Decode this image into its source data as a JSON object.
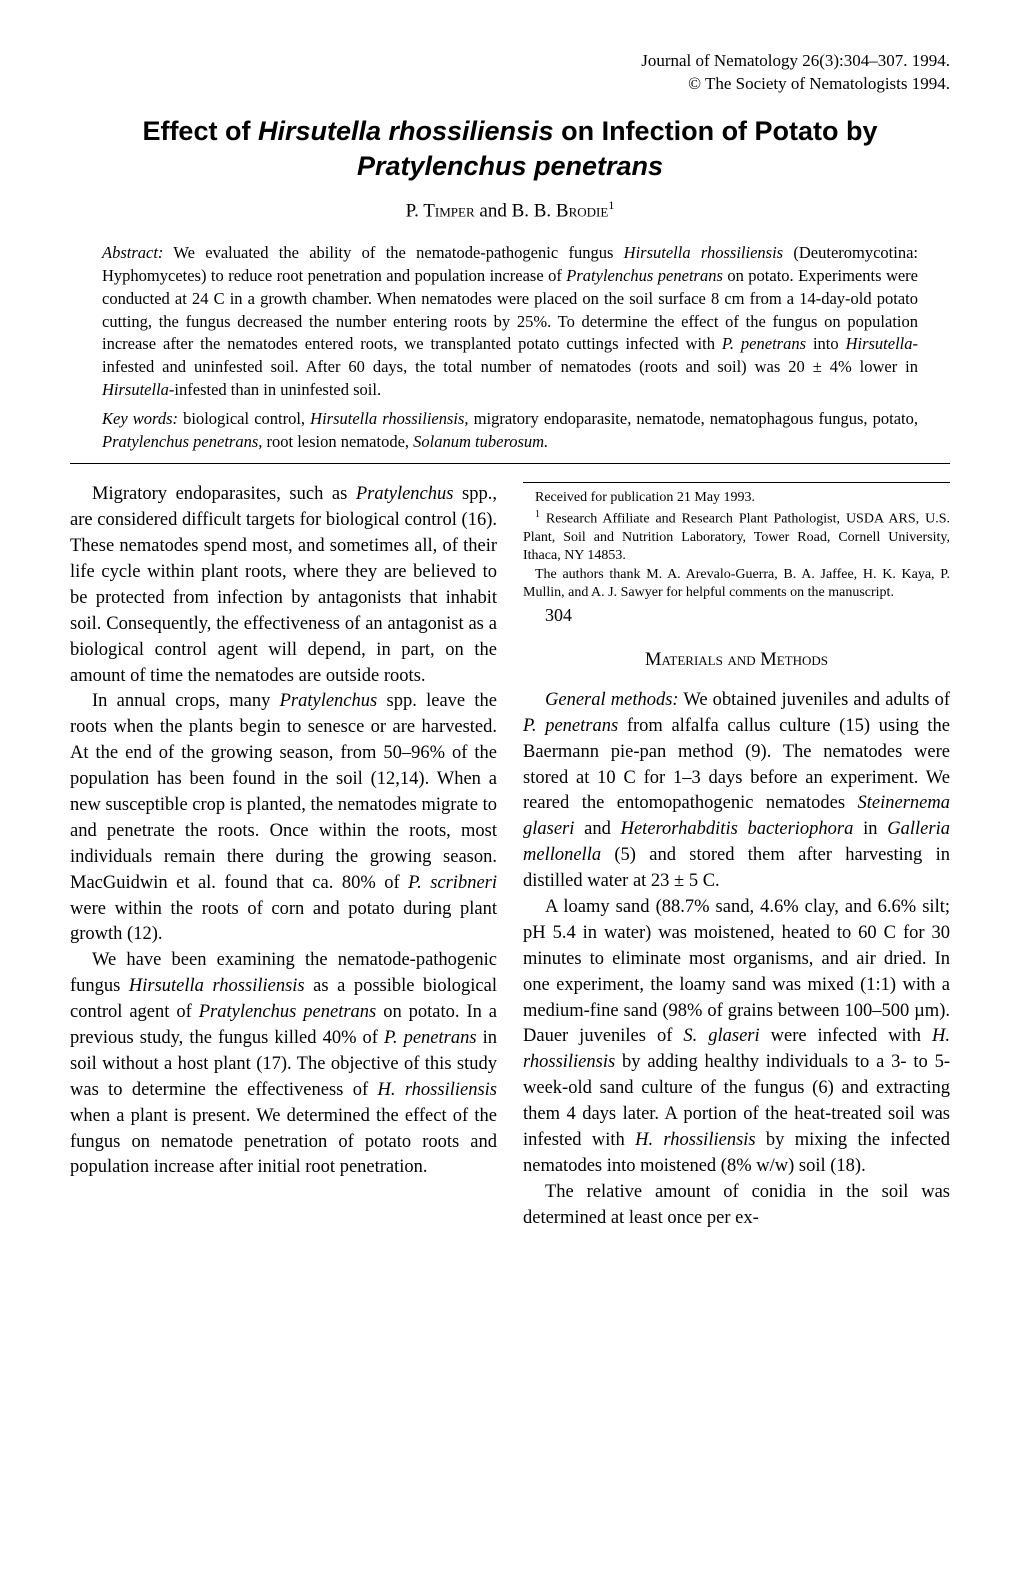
{
  "header": {
    "citation": "Journal of Nematology 26(3):304–307. 1994.",
    "copyright": "© The Society of Nematologists 1994."
  },
  "title": {
    "pre": "Effect of ",
    "sp1": "Hirsutella rhossiliensis",
    "mid": " on Infection of Potato by ",
    "sp2": "Pratylenchus penetrans"
  },
  "authors": {
    "a1": "P. Timper",
    "conj": " and ",
    "a2": "B. B. Brodie",
    "sup": "1"
  },
  "abstract": {
    "label": "Abstract:",
    "text_parts": {
      "p1": " We evaluated the ability of the nematode-pathogenic fungus ",
      "i1": "Hirsutella rhossiliensis",
      "p2": " (Deuteromycotina: Hyphomycetes) to reduce root penetration and population increase of ",
      "i2": "Pratylenchus penetrans",
      "p3": " on potato. Experiments were conducted at 24 C in a growth chamber. When nematodes were placed on the soil surface 8 cm from a 14-day-old potato cutting, the fungus decreased the number entering roots by 25%. To determine the effect of the fungus on population increase after the nematodes entered roots, we transplanted potato cuttings infected with ",
      "i3": "P. penetrans",
      "p4": " into ",
      "i4": "Hirsutella",
      "p5": "-infested and uninfested soil. After 60 days, the total number of nematodes (roots and soil) was 20 ± 4% lower in ",
      "i5": "Hirsutella",
      "p6": "-infested than in uninfested soil."
    }
  },
  "keywords": {
    "label": "Key words:",
    "parts": {
      "p1": " biological control, ",
      "i1": "Hirsutella rhossiliensis,",
      "p2": " migratory endoparasite, nematode, nematophagous fungus, potato, ",
      "i2": "Pratylenchus penetrans,",
      "p3": " root lesion nematode, ",
      "i3": "Solanum tuberosum."
    }
  },
  "body": {
    "para1": {
      "p1": "Migratory endoparasites, such as ",
      "i1": "Pratylenchus",
      "p2": " spp., are considered difficult targets for biological control (16). These nematodes spend most, and sometimes all, of their life cycle within plant roots, where they are believed to be protected from infection by antagonists that inhabit soil. Consequently, the effectiveness of an antagonist as a biological control agent will depend, in part, on the amount of time the nematodes are outside roots."
    },
    "para2": {
      "p1": "In annual crops, many ",
      "i1": "Pratylenchus",
      "p2": " spp. leave the roots when the plants begin to senesce or are harvested. At the end of the growing season, from 50–96% of the population has been found in the soil (12,14). When a new susceptible crop is planted, the nematodes migrate to and penetrate the roots. Once within the roots, most individuals remain there during the growing season. MacGuidwin et al. found that ca. 80% of ",
      "i2": "P. scribneri",
      "p3": " were within the roots of corn and potato during plant growth (12)."
    },
    "para3": {
      "p1": "We have been examining the nematode-pathogenic fungus ",
      "i1": "Hirsutella rhossiliensis",
      "p2": " as a possible biological control agent of ",
      "i2": "Pratylenchus penetrans",
      "p3": " on potato. In a previous study, the fungus killed 40% of ",
      "i3": "P. penetrans",
      "p4": " in soil without a host plant (17). The objective of this study was to determine the effectiveness of ",
      "i4": "H. rhossiliensis",
      "p5": " when a plant is present. We determined the effect of the fungus on nematode penetration of potato roots and population increase after initial root penetration."
    },
    "section_heading": "Materials and Methods",
    "para4": {
      "i1": "General methods:",
      "p1": " We obtained juveniles and adults of ",
      "i2": "P. penetrans",
      "p2": " from alfalfa callus culture (15) using the Baermann pie-pan method (9). The nematodes were stored at 10 C for 1–3 days before an experiment. We reared the entomopathogenic nematodes ",
      "i3": "Steinernema glaseri",
      "p3": " and ",
      "i4": "Heterorhabditis bacteriophora",
      "p4": " in ",
      "i5": "Galleria mellonella",
      "p5": " (5) and stored them after harvesting in distilled water at 23 ± 5 C."
    },
    "para5": {
      "p1": "A loamy sand (88.7% sand, 4.6% clay, and 6.6% silt; pH 5.4 in water) was moistened, heated to 60 C for 30 minutes to eliminate most organisms, and air dried. In one experiment, the loamy sand was mixed (1:1) with a medium-fine sand (98% of grains between 100–500 µm). Dauer juveniles of ",
      "i1": "S. glaseri",
      "p2": " were infected with ",
      "i2": "H. rhossiliensis",
      "p3": " by adding healthy individuals to a 3- to 5-week-old sand culture of the fungus (6) and extracting them 4 days later. A portion of the heat-treated soil was infested with ",
      "i3": "H. rhossiliensis",
      "p4": " by mixing the infected nematodes into moistened (8% w/w) soil (18)."
    },
    "para6": {
      "p1": "The relative amount of conidia in the soil was determined at least once per ex-"
    }
  },
  "footnotes": {
    "f1": "Received for publication 21 May 1993.",
    "f2_sup": "1",
    "f2": " Research Affiliate and Research Plant Pathologist, USDA ARS, U.S. Plant, Soil and Nutrition Laboratory, Tower Road, Cornell University, Ithaca, NY 14853.",
    "f3": "The authors thank M. A. Arevalo-Guerra, B. A. Jaffee, H. K. Kaya, P. Mullin, and A. J. Sawyer for helpful comments on the manuscript."
  },
  "page_number": "304"
}
